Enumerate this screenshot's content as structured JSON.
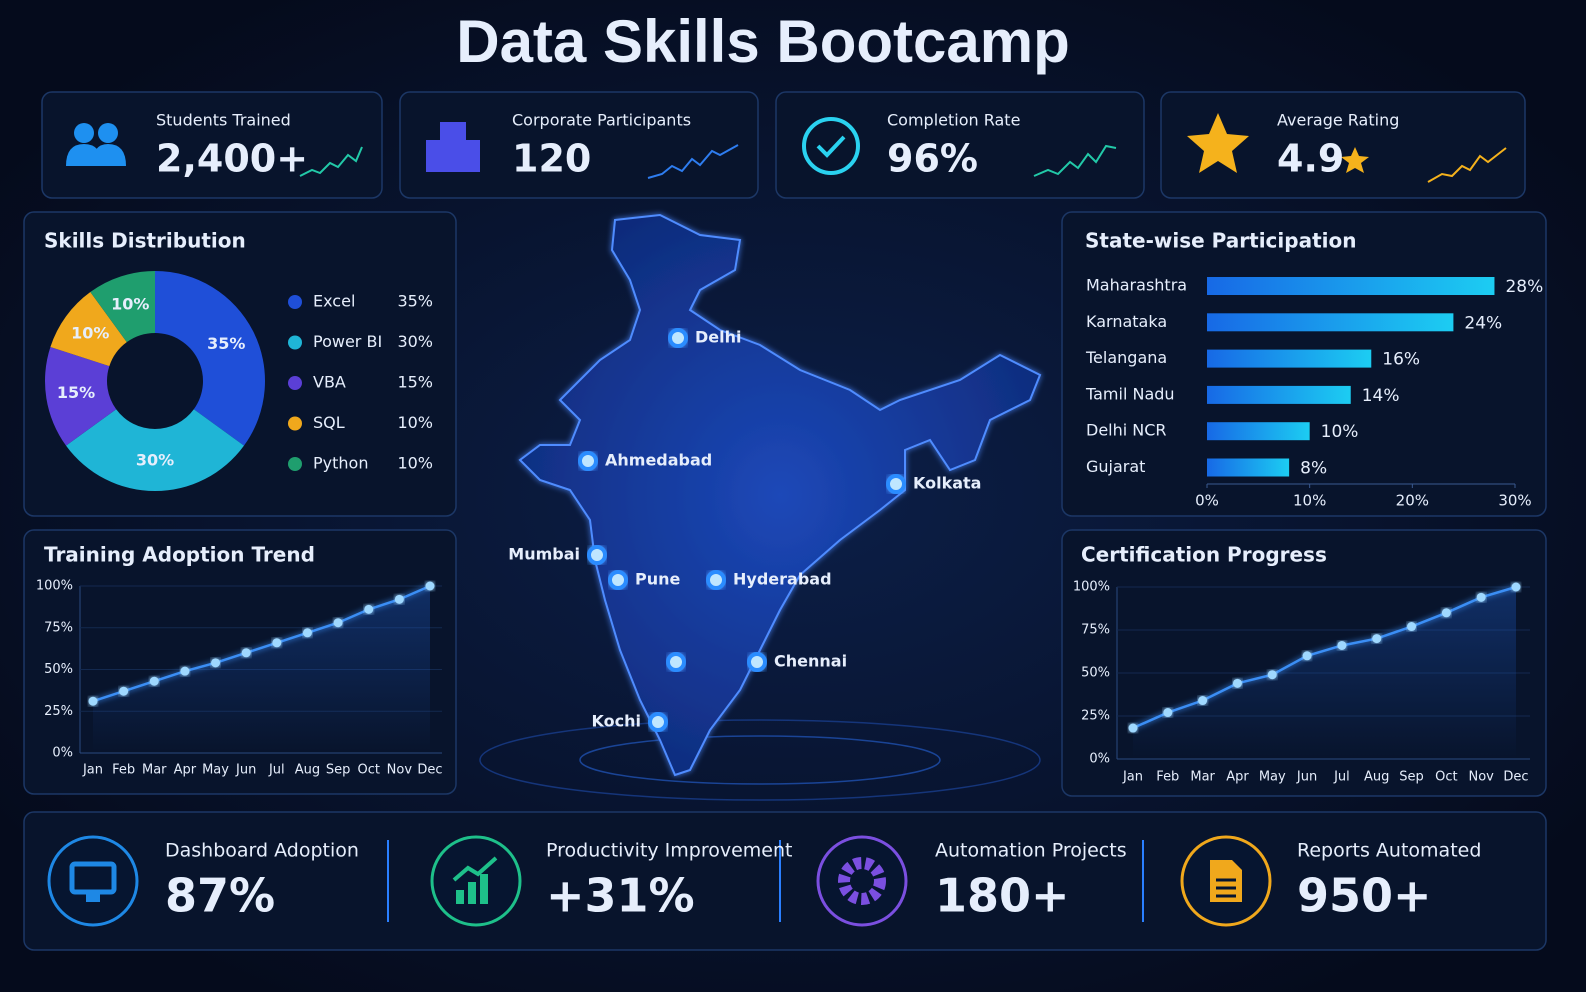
{
  "title": "Data Skills Bootcamp",
  "kpis": [
    {
      "label": "Students Trained",
      "value": "2,400+"
    },
    {
      "label": "Corporate Participants",
      "value": "120"
    },
    {
      "label": "Completion Rate",
      "value": "96%"
    },
    {
      "label": "Average Rating",
      "value": "4.9"
    }
  ],
  "chart_data": [
    {
      "type": "pie",
      "title": "Skills Distribution",
      "categories": [
        "Excel",
        "Power BI",
        "VBA",
        "SQL",
        "Python"
      ],
      "values": [
        35,
        30,
        15,
        10,
        10
      ],
      "value_labels": [
        "35%",
        "30%",
        "15%",
        "10%",
        "10%"
      ],
      "colors": [
        "#1f4fd8",
        "#1fb5d6",
        "#5b3fd6",
        "#f0a81c",
        "#1f9e6e"
      ]
    },
    {
      "type": "hbar",
      "title": "State-wise Participation",
      "categories": [
        "Maharashtra",
        "Karnataka",
        "Telangana",
        "Tamil Nadu",
        "Delhi NCR",
        "Gujarat"
      ],
      "values": [
        28,
        24,
        16,
        14,
        10,
        8
      ],
      "value_labels": [
        "28%",
        "24%",
        "16%",
        "14%",
        "10%",
        "8%"
      ],
      "xlim": [
        0,
        30
      ],
      "xticks": [
        {
          "value": 0,
          "label": "0%"
        },
        {
          "value": 10,
          "label": "10%"
        },
        {
          "value": 20,
          "label": "20%"
        },
        {
          "value": 30,
          "label": "30%"
        }
      ],
      "color": "#1a8ff0"
    },
    {
      "type": "line",
      "title": "Training Adoption Trend",
      "categories": [
        "Jan",
        "Feb",
        "Mar",
        "Apr",
        "May",
        "Jun",
        "Jul",
        "Aug",
        "Sep",
        "Oct",
        "Nov",
        "Dec"
      ],
      "values": [
        31,
        37,
        43,
        49,
        54,
        60,
        66,
        72,
        78,
        86,
        92,
        100
      ],
      "ylim": [
        0,
        100
      ],
      "yticks": [
        {
          "value": 0,
          "label": "0%"
        },
        {
          "value": 25,
          "label": "25%"
        },
        {
          "value": 50,
          "label": "50%"
        },
        {
          "value": 75,
          "label": "75%"
        },
        {
          "value": 100,
          "label": "100%"
        }
      ],
      "color": "#3a8ef5",
      "grid": true
    },
    {
      "type": "line",
      "title": "Certification Progress",
      "categories": [
        "Jan",
        "Feb",
        "Mar",
        "Apr",
        "May",
        "Jun",
        "Jul",
        "Aug",
        "Sep",
        "Oct",
        "Nov",
        "Dec"
      ],
      "values": [
        18,
        27,
        34,
        44,
        49,
        60,
        66,
        70,
        77,
        85,
        94,
        100
      ],
      "ylim": [
        0,
        100
      ],
      "yticks": [
        {
          "value": 0,
          "label": "0%"
        },
        {
          "value": 25,
          "label": "25%"
        },
        {
          "value": 50,
          "label": "50%"
        },
        {
          "value": 75,
          "label": "75%"
        },
        {
          "value": 100,
          "label": "100%"
        }
      ],
      "color": "#3a8ef5",
      "grid": true
    }
  ],
  "map": {
    "cities": [
      "Delhi",
      "Ahmedabad",
      "Kolkata",
      "Mumbai",
      "Pune",
      "Hyderabad",
      "Chennai",
      "Kochi"
    ]
  },
  "stats": [
    {
      "label": "Dashboard Adoption",
      "value": "87%"
    },
    {
      "label": "Productivity Improvement",
      "value": "+31%"
    },
    {
      "label": "Automation Projects",
      "value": "180+"
    },
    {
      "label": "Reports Automated",
      "value": "950+"
    }
  ]
}
